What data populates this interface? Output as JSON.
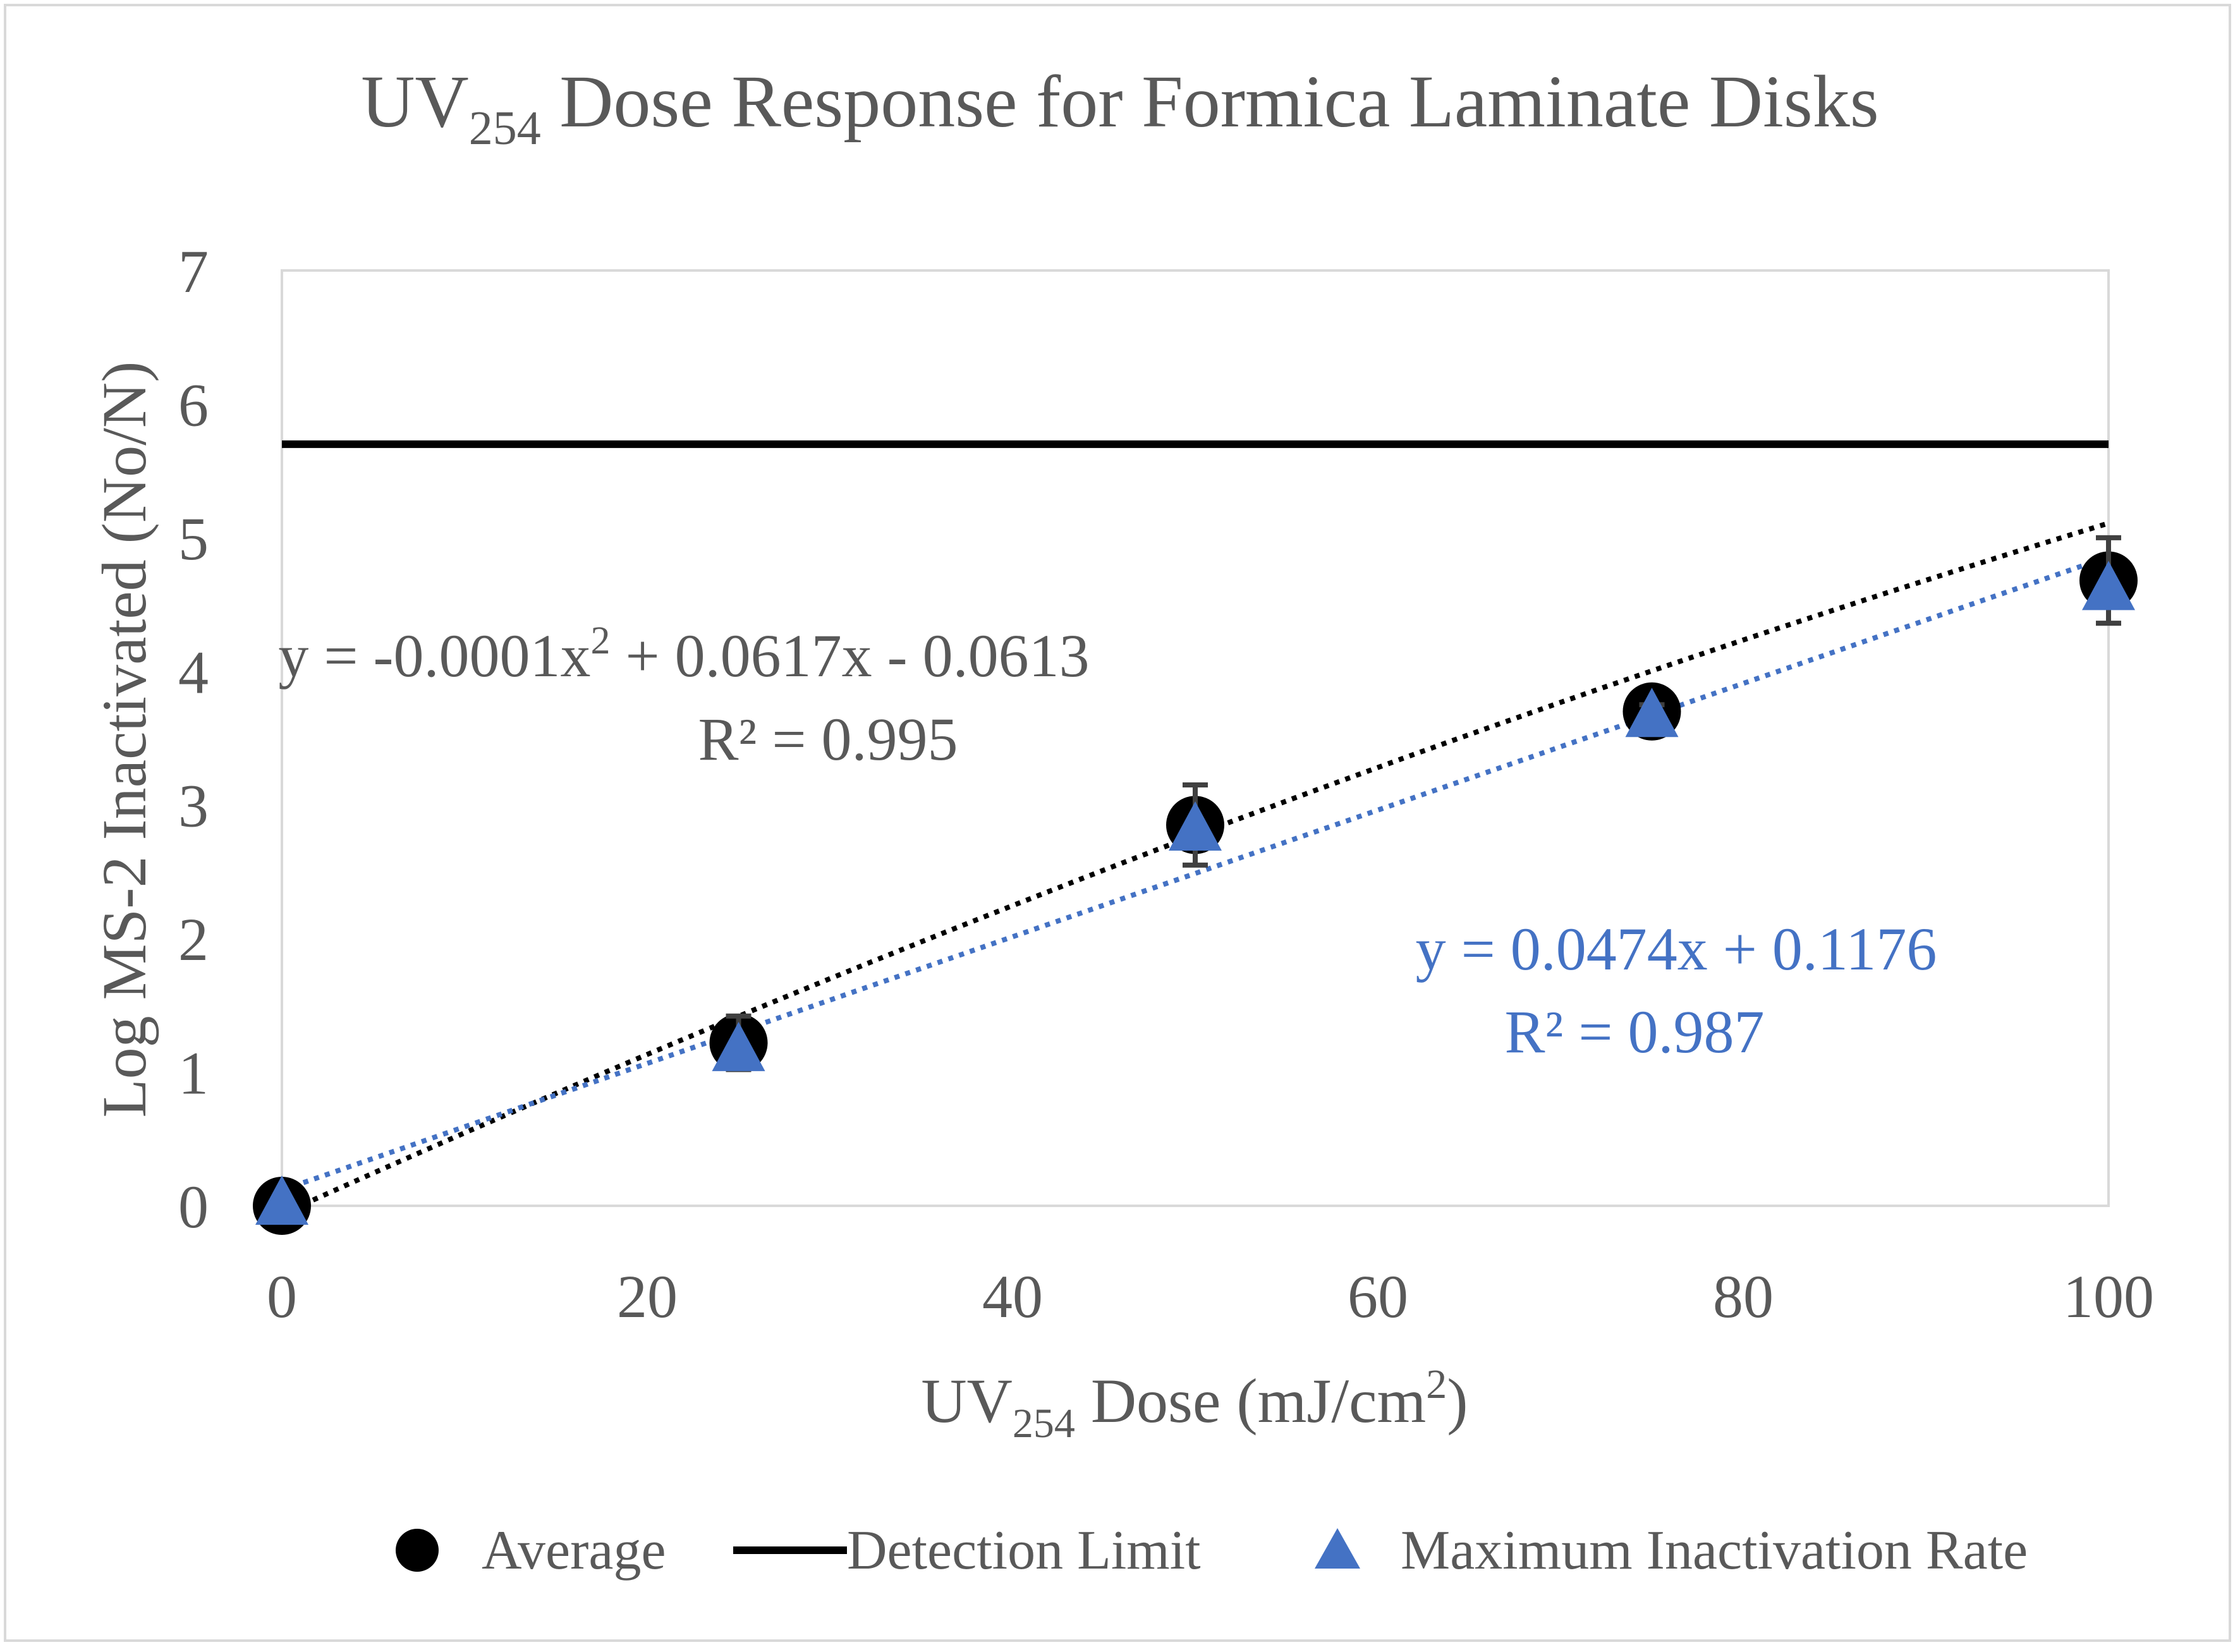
{
  "chart_data": {
    "type": "scatter",
    "title": {
      "main": "UV",
      "sub": "254",
      "rest": " Dose Response for Formica Laminate Disks"
    },
    "xlabel": {
      "main": "UV",
      "sub": "254",
      "rest": " Dose (mJ/cm",
      "sup": "2",
      "end": ")"
    },
    "ylabel": "Log MS-2 Inactivated (No/N)",
    "xlim": [
      0,
      100
    ],
    "ylim": [
      0,
      7
    ],
    "xticks": [
      "0",
      "20",
      "40",
      "60",
      "80",
      "100"
    ],
    "yticks": [
      "0",
      "1",
      "2",
      "3",
      "4",
      "5",
      "6",
      "7"
    ],
    "grid": false,
    "series": [
      {
        "name": "Average",
        "marker": "circle",
        "color": "#000000",
        "x": [
          0,
          25,
          50,
          75,
          100
        ],
        "y": [
          0,
          1.22,
          2.85,
          3.7,
          4.68
        ],
        "yerr": [
          0,
          0.2,
          0.3,
          0.05,
          0.32
        ]
      },
      {
        "name": "Maximum Inactivation Rate",
        "marker": "triangle",
        "color": "#4472c4",
        "x": [
          0,
          25,
          50,
          75,
          100
        ],
        "y": [
          0,
          1.15,
          2.8,
          3.65,
          4.6
        ]
      }
    ],
    "reference_lines": [
      {
        "name": "Detection Limit",
        "y": 5.7,
        "color": "#000000"
      }
    ],
    "trendlines": [
      {
        "series": "Average",
        "type": "polynomial",
        "coefficients": [
          -0.0001,
          0.0617,
          -0.0613
        ],
        "color": "#000000",
        "style": "dotted"
      },
      {
        "series": "Maximum Inactivation Rate",
        "type": "linear",
        "coefficients": [
          0.0474,
          0.1176
        ],
        "color": "#4472c4",
        "style": "dotted"
      }
    ],
    "annotations": {
      "black_equation": {
        "pre": "y = -0.0001x",
        "sup": "2",
        "post": " + 0.0617x - 0.0613"
      },
      "black_r2": "R² = 0.995",
      "blue_equation": "y = 0.0474x + 0.1176",
      "blue_r2": "R² = 0.987"
    },
    "legend": {
      "position": "bottom",
      "entries": [
        "Average",
        "Detection Limit",
        "Maximum Inactivation Rate"
      ]
    }
  }
}
